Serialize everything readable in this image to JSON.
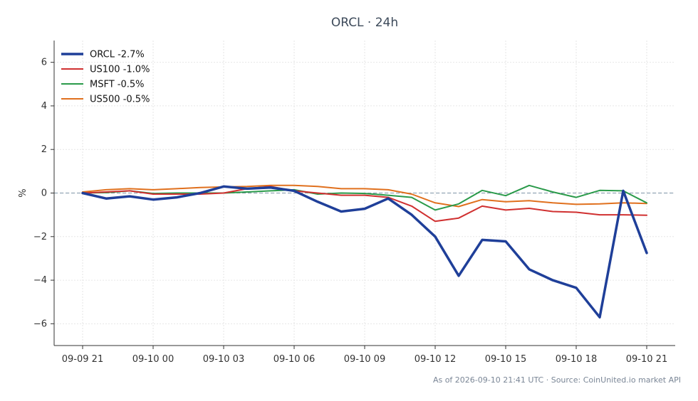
{
  "chart_data": {
    "type": "line",
    "title": "ORCL · 24h",
    "ylabel": "%",
    "xlabel": "",
    "ylim": [
      -7,
      7
    ],
    "yticks": [
      -6,
      -4,
      -2,
      0,
      2,
      4,
      6
    ],
    "ytick_labels": [
      "−6",
      "−4",
      "−2",
      "0",
      "2",
      "4",
      "6"
    ],
    "xlim": [
      "2026-09-09 21:00",
      "2026-09-10 21:00"
    ],
    "x_tick_labels": [
      "09-09 21",
      "09-10 00",
      "09-10 03",
      "09-10 06",
      "09-10 09",
      "09-10 12",
      "09-10 15",
      "09-10 18",
      "09-10 21"
    ],
    "x": [
      "2026-09-09 21:00",
      "2026-09-09 22:00",
      "2026-09-09 23:00",
      "2026-09-10 00:00",
      "2026-09-10 01:00",
      "2026-09-10 02:00",
      "2026-09-10 03:00",
      "2026-09-10 04:00",
      "2026-09-10 05:00",
      "2026-09-10 06:00",
      "2026-09-10 07:00",
      "2026-09-10 08:00",
      "2026-09-10 09:00",
      "2026-09-10 10:00",
      "2026-09-10 11:00",
      "2026-09-10 12:00",
      "2026-09-10 13:00",
      "2026-09-10 14:00",
      "2026-09-10 15:00",
      "2026-09-10 16:00",
      "2026-09-10 17:00",
      "2026-09-10 18:00",
      "2026-09-10 19:00",
      "2026-09-10 20:00",
      "2026-09-10 21:00"
    ],
    "zero_line": true,
    "grid": true,
    "legend_position": "top-left",
    "series": [
      {
        "name": "ORCL -2.7%",
        "color": "#1f3f99",
        "linewidth": 3.5,
        "values": [
          0.0,
          -0.25,
          -0.15,
          -0.3,
          -0.2,
          0.0,
          0.3,
          0.2,
          0.25,
          0.1,
          -0.4,
          -0.85,
          -0.72,
          -0.25,
          -1.0,
          -2.0,
          -3.8,
          -2.15,
          -2.22,
          -3.5,
          -4.0,
          -4.35,
          -5.7,
          0.1,
          -2.75
        ]
      },
      {
        "name": "US100 -1.0%",
        "color": "#d03030",
        "linewidth": 2,
        "values": [
          0.0,
          0.05,
          0.1,
          -0.05,
          -0.05,
          -0.05,
          0.0,
          0.2,
          0.3,
          0.1,
          0.0,
          -0.1,
          -0.1,
          -0.2,
          -0.6,
          -1.3,
          -1.15,
          -0.6,
          -0.78,
          -0.7,
          -0.85,
          -0.88,
          -1.0,
          -1.0,
          -1.02
        ]
      },
      {
        "name": "MSFT -0.5%",
        "color": "#2a9a4a",
        "linewidth": 2,
        "values": [
          0.0,
          0.02,
          0.1,
          -0.02,
          0.0,
          0.0,
          0.0,
          0.05,
          0.1,
          0.15,
          -0.05,
          0.0,
          -0.02,
          -0.1,
          -0.2,
          -0.78,
          -0.5,
          0.12,
          -0.12,
          0.35,
          0.05,
          -0.2,
          0.12,
          0.1,
          -0.45
        ]
      },
      {
        "name": "US500 -0.5%",
        "color": "#e0701e",
        "linewidth": 2,
        "values": [
          0.05,
          0.15,
          0.2,
          0.15,
          0.2,
          0.25,
          0.28,
          0.3,
          0.35,
          0.35,
          0.3,
          0.2,
          0.2,
          0.15,
          -0.05,
          -0.45,
          -0.62,
          -0.3,
          -0.4,
          -0.35,
          -0.45,
          -0.52,
          -0.5,
          -0.45,
          -0.48
        ]
      }
    ]
  },
  "footer": "As of 2026-09-10 21:41 UTC · Source: CoinUnited.io market API"
}
